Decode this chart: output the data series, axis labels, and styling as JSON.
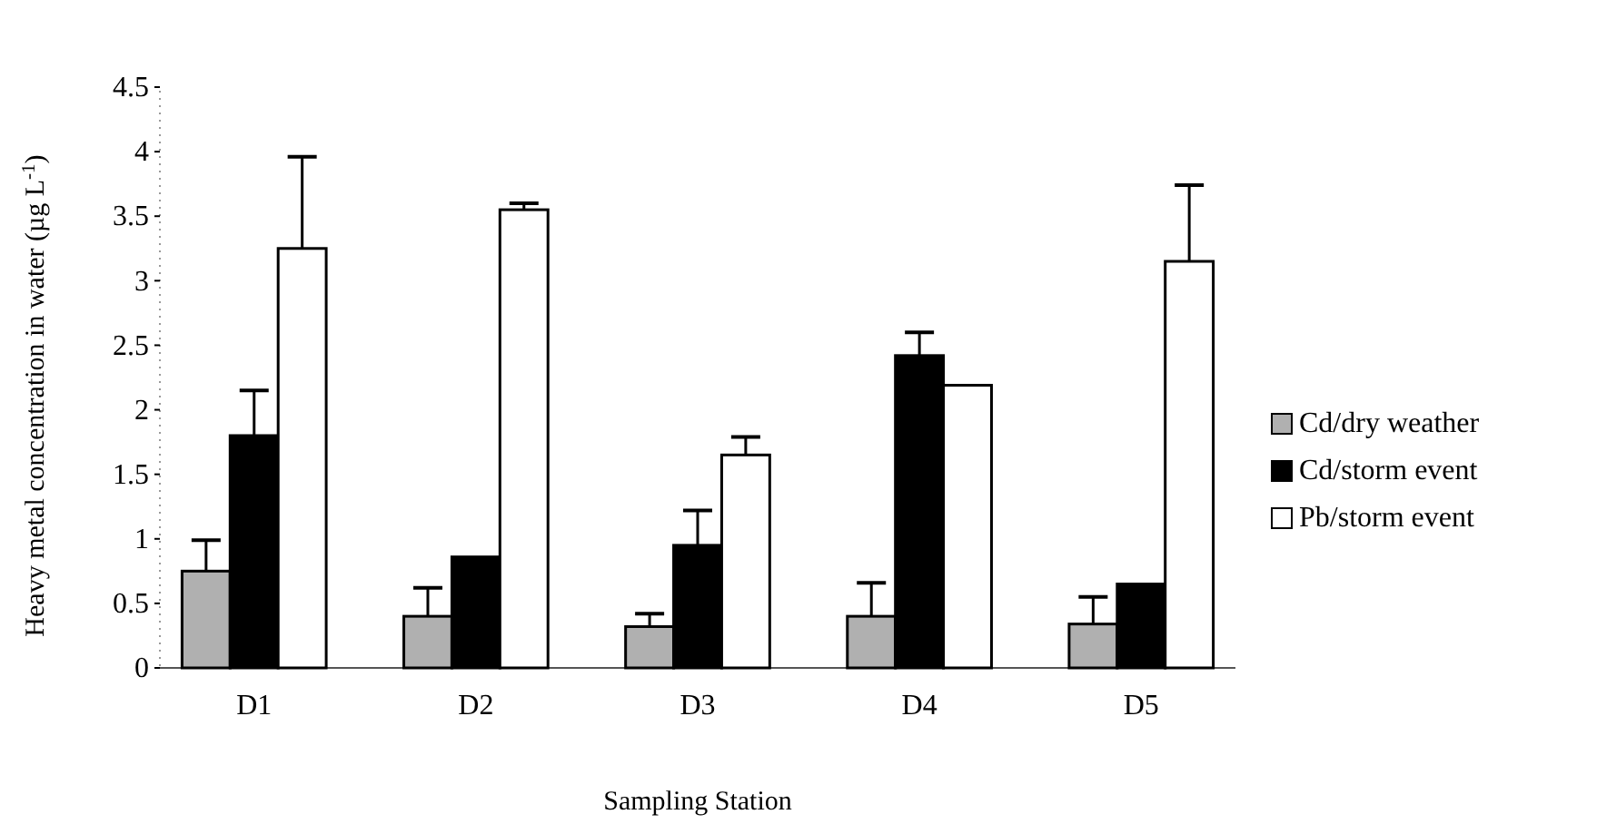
{
  "chart_data": {
    "type": "bar",
    "xlabel": "Sampling Station",
    "ylabel": "Heavy metal concentration in water (µg L$^{-1}$)",
    "categories": [
      "D1",
      "D2",
      "D3",
      "D4",
      "D5"
    ],
    "ylim": [
      0,
      4.5
    ],
    "yticks": [
      0,
      0.5,
      1,
      1.5,
      2,
      2.5,
      3,
      3.5,
      4,
      4.5
    ],
    "grid": false,
    "legend": "right",
    "series": [
      {
        "name": "Cd/dry weather",
        "color": "#b0b0b0",
        "values": [
          0.75,
          0.4,
          0.32,
          0.4,
          0.34
        ],
        "errors": [
          [
            0.75,
            0.99
          ],
          [
            0.4,
            0.62
          ],
          [
            0.32,
            0.42
          ],
          [
            0.4,
            0.66
          ],
          [
            0.34,
            0.55
          ]
        ]
      },
      {
        "name": "Cd/storm event",
        "color": "#000000",
        "values": [
          1.8,
          0.86,
          0.95,
          2.42,
          0.65
        ],
        "errors": [
          [
            1.8,
            2.15
          ],
          null,
          [
            0.95,
            1.22
          ],
          [
            2.42,
            2.6
          ],
          null
        ]
      },
      {
        "name": "Pb/storm event",
        "color": "#ffffff",
        "values": [
          3.25,
          3.55,
          1.65,
          2.19,
          3.15
        ],
        "errors": [
          [
            3.25,
            3.96
          ],
          [
            3.55,
            3.6
          ],
          [
            1.65,
            1.79
          ],
          null,
          [
            3.15,
            3.74
          ]
        ]
      }
    ]
  }
}
